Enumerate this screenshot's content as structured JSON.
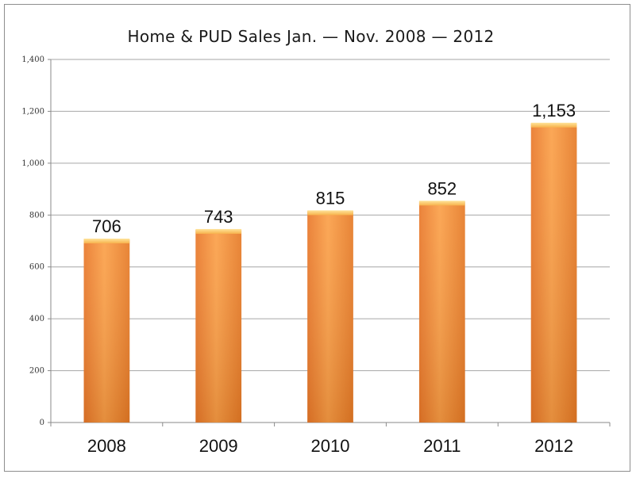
{
  "chart_data": {
    "type": "bar",
    "title": "Home & PUD Sales Jan. — Nov. 2008 — 2012",
    "xlabel": "",
    "ylabel": "",
    "categories": [
      "2008",
      "2009",
      "2010",
      "2011",
      "2012"
    ],
    "values": [
      706,
      743,
      815,
      852,
      1153
    ],
    "value_labels": [
      "706",
      "743",
      "815",
      "852",
      "1,153"
    ],
    "ylim": [
      0,
      1400
    ],
    "yticks": [
      0,
      200,
      400,
      600,
      800,
      1000,
      1200,
      1400
    ],
    "ytick_labels": [
      "0",
      "200",
      "400",
      "600",
      "800",
      "1,000",
      "1,200",
      "1,400"
    ],
    "grid": true,
    "legend": "none",
    "bar_color": "#f5922f"
  }
}
